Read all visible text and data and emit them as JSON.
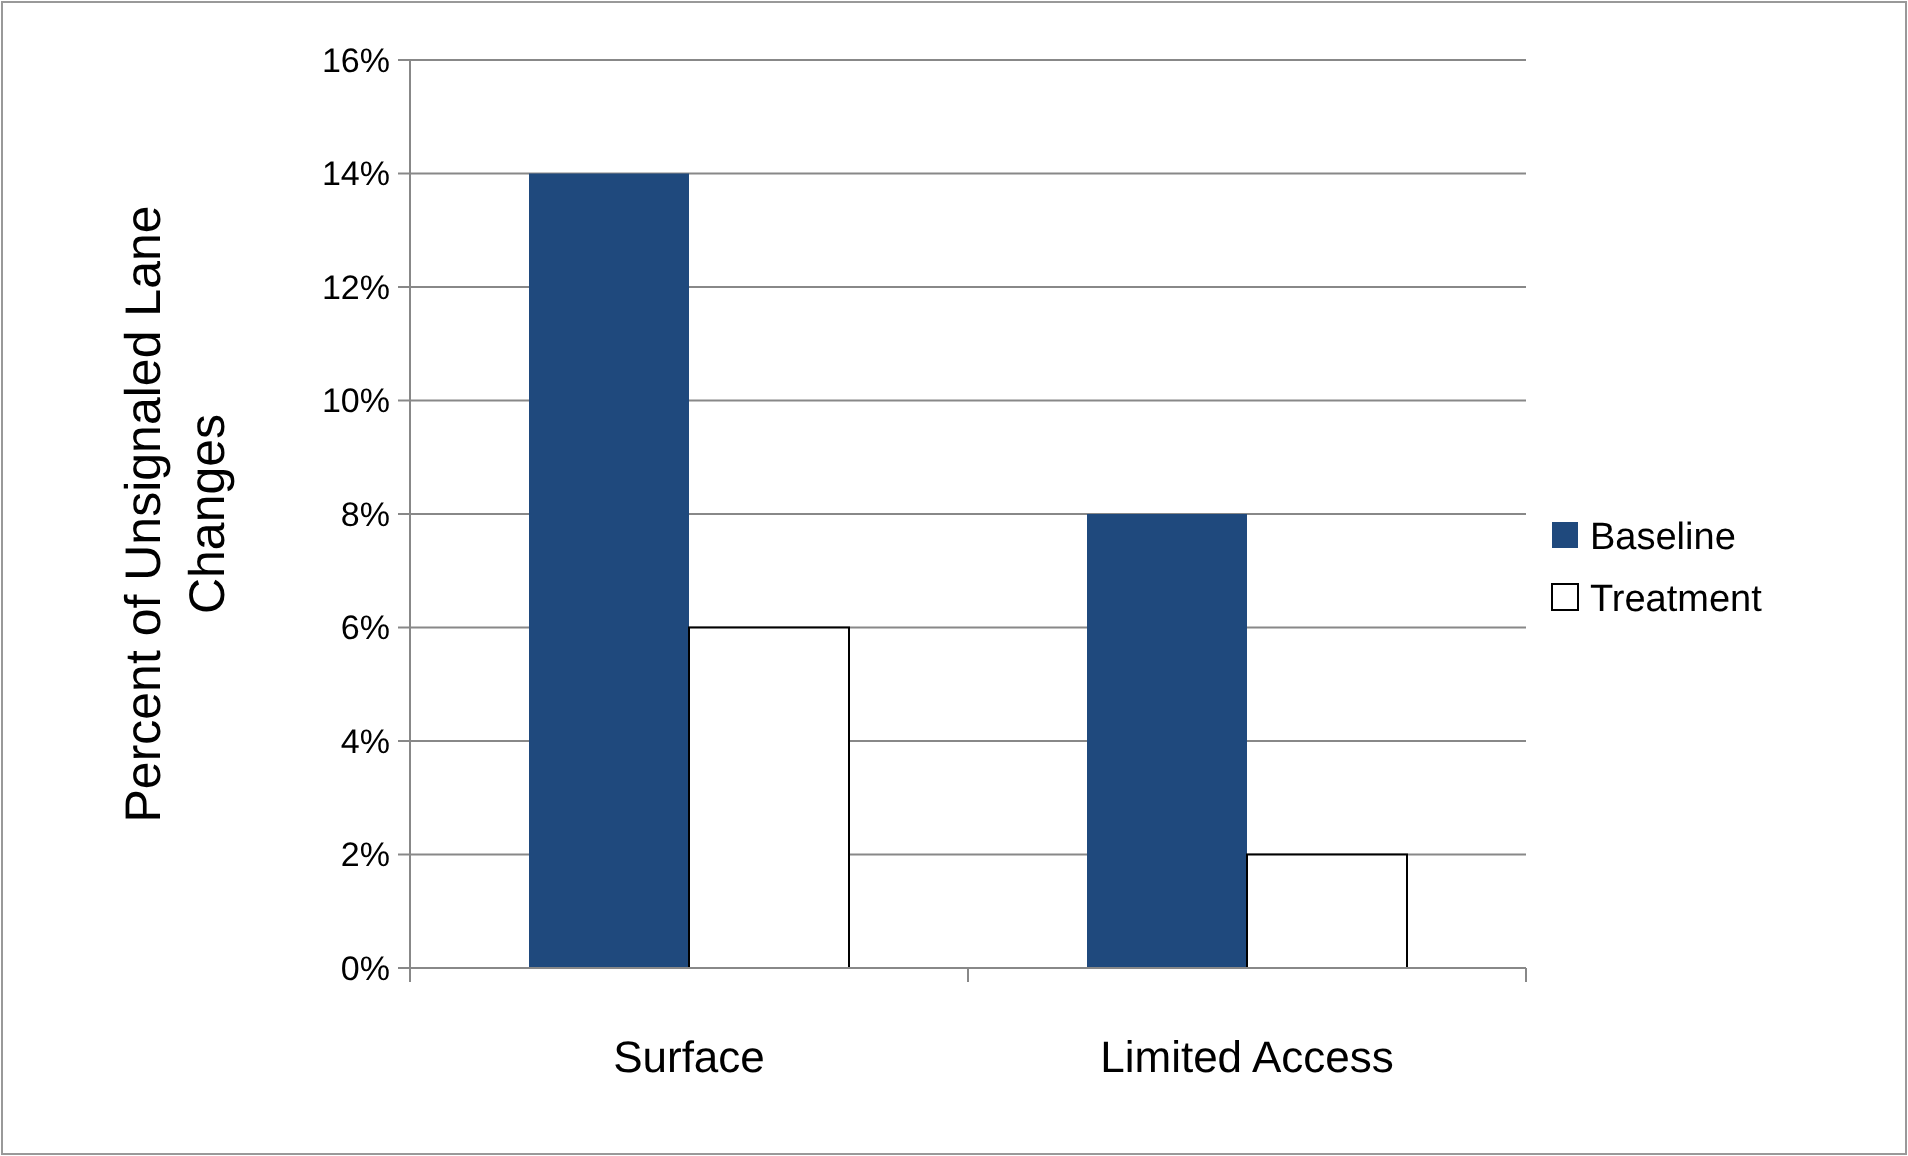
{
  "chart_data": {
    "type": "bar",
    "ylabel": "Percent of Unsignaled Lane Changes",
    "categories": [
      "Surface",
      "Limited Access"
    ],
    "series": [
      {
        "name": "Baseline",
        "color": "#1f497d",
        "values": [
          14,
          8
        ]
      },
      {
        "name": "Treatment",
        "color": "#ffffff",
        "values": [
          6,
          2
        ]
      }
    ],
    "ylim": [
      0,
      16
    ],
    "yticks": [
      {
        "value": 0,
        "label": "0%"
      },
      {
        "value": 2,
        "label": "2%"
      },
      {
        "value": 4,
        "label": "4%"
      },
      {
        "value": 6,
        "label": "6%"
      },
      {
        "value": 8,
        "label": "8%"
      },
      {
        "value": 10,
        "label": "10%"
      },
      {
        "value": 12,
        "label": "12%"
      },
      {
        "value": 14,
        "label": "14%"
      },
      {
        "value": 16,
        "label": "16%"
      }
    ],
    "grid": "y",
    "legend": "right"
  }
}
